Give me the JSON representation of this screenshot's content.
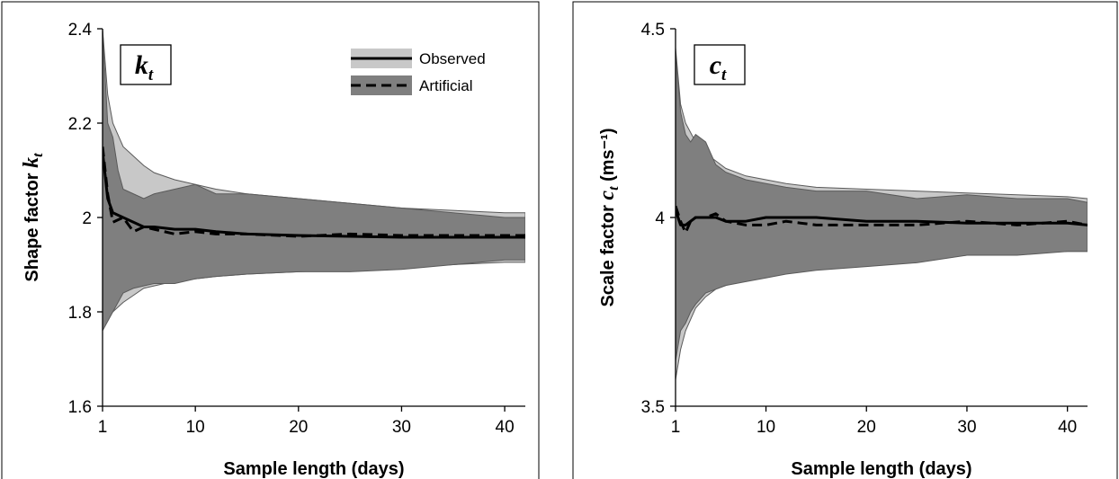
{
  "chart_data": [
    {
      "id": "left",
      "type": "area",
      "panel_label": {
        "symbol": "k",
        "sub": "t"
      },
      "xlabel": "Sample length (days)",
      "ylabel": {
        "text": "Shape factor ",
        "symbol": "k",
        "sub": "t",
        "suffix": ""
      },
      "xlim": [
        1,
        42
      ],
      "ylim": [
        1.6,
        2.4
      ],
      "xticks": [
        1,
        10,
        20,
        30,
        40
      ],
      "yticks": [
        1.6,
        1.8,
        2,
        2.2,
        2.4
      ],
      "ytick_labels": [
        "1.6",
        "1.8",
        "2",
        "2.2",
        "2.4"
      ],
      "legend": {
        "position": "top-right",
        "entries": [
          "Observed",
          "Artificial"
        ]
      },
      "series": [
        {
          "name": "Observed",
          "style": "solid",
          "x": [
            1,
            1.5,
            2,
            3,
            4,
            5,
            6,
            8,
            10,
            12,
            15,
            20,
            25,
            30,
            35,
            40,
            42
          ],
          "y": [
            2.14,
            2.04,
            2.01,
            2.0,
            1.99,
            1.98,
            1.98,
            1.975,
            1.975,
            1.97,
            1.965,
            1.962,
            1.96,
            1.958,
            1.958,
            1.958,
            1.958
          ],
          "band": {
            "upper": [
              2.4,
              2.26,
              2.2,
              2.15,
              2.13,
              2.11,
              2.095,
              2.08,
              2.07,
              2.06,
              2.05,
              2.04,
              2.03,
              2.02,
              2.015,
              2.01,
              2.01
            ],
            "lower": [
              1.77,
              1.79,
              1.8,
              1.82,
              1.835,
              1.85,
              1.855,
              1.865,
              1.87,
              1.875,
              1.88,
              1.885,
              1.89,
              1.895,
              1.9,
              1.905,
              1.905
            ]
          }
        },
        {
          "name": "Artificial",
          "style": "dashed",
          "x": [
            1,
            1.5,
            2,
            2.5,
            3,
            4,
            5,
            6,
            8,
            10,
            12,
            15,
            20,
            25,
            30,
            35,
            40,
            42
          ],
          "y": [
            2.15,
            2.05,
            1.99,
            1.995,
            2.0,
            1.97,
            1.98,
            1.975,
            1.965,
            1.97,
            1.965,
            1.965,
            1.96,
            1.965,
            1.962,
            1.962,
            1.962,
            1.962
          ],
          "band": {
            "upper": [
              2.4,
              2.2,
              2.17,
              2.1,
              2.06,
              2.05,
              2.04,
              2.05,
              2.06,
              2.07,
              2.05,
              2.05,
              2.04,
              2.03,
              2.02,
              2.01,
              2.0,
              2.0
            ],
            "lower": [
              1.76,
              1.78,
              1.8,
              1.82,
              1.84,
              1.85,
              1.855,
              1.86,
              1.86,
              1.87,
              1.875,
              1.88,
              1.885,
              1.885,
              1.89,
              1.9,
              1.91,
              1.91
            ]
          }
        }
      ]
    },
    {
      "id": "right",
      "type": "area",
      "panel_label": {
        "symbol": "c",
        "sub": "t"
      },
      "xlabel": "Sample length (days)",
      "ylabel": {
        "text": "Scale factor ",
        "symbol": "c",
        "sub": "t",
        "suffix": " (ms⁻¹)"
      },
      "xlim": [
        1,
        42
      ],
      "ylim": [
        3.5,
        4.5
      ],
      "xticks": [
        1,
        10,
        20,
        30,
        40
      ],
      "yticks": [
        3.5,
        4,
        4.5
      ],
      "ytick_labels": [
        "3.5",
        "4",
        "4.5"
      ],
      "series": [
        {
          "name": "Observed",
          "style": "solid",
          "x": [
            1,
            1.5,
            2,
            3,
            4,
            5,
            6,
            8,
            10,
            12,
            15,
            20,
            25,
            30,
            35,
            40,
            42
          ],
          "y": [
            4.02,
            3.98,
            3.98,
            4.0,
            4.0,
            4.0,
            3.99,
            3.99,
            4.0,
            4.0,
            4.0,
            3.99,
            3.99,
            3.985,
            3.985,
            3.985,
            3.98
          ],
          "band": {
            "upper": [
              4.45,
              4.3,
              4.25,
              4.2,
              4.17,
              4.15,
              4.13,
              4.11,
              4.1,
              4.09,
              4.08,
              4.075,
              4.07,
              4.065,
              4.06,
              4.055,
              4.05
            ],
            "lower": [
              3.57,
              3.65,
              3.7,
              3.76,
              3.79,
              3.81,
              3.82,
              3.84,
              3.85,
              3.86,
              3.87,
              3.88,
              3.89,
              3.9,
              3.905,
              3.91,
              3.91
            ]
          }
        },
        {
          "name": "Artificial",
          "style": "dashed",
          "x": [
            1,
            1.5,
            2,
            2.5,
            3,
            4,
            5,
            6,
            8,
            10,
            12,
            15,
            20,
            25,
            30,
            35,
            40,
            42
          ],
          "y": [
            4.03,
            3.99,
            3.96,
            3.99,
            4.0,
            4.0,
            4.01,
            3.99,
            3.98,
            3.98,
            3.99,
            3.98,
            3.98,
            3.98,
            3.99,
            3.98,
            3.99,
            3.98
          ],
          "band": {
            "upper": [
              4.44,
              4.28,
              4.22,
              4.2,
              4.22,
              4.2,
              4.14,
              4.12,
              4.1,
              4.09,
              4.08,
              4.07,
              4.07,
              4.05,
              4.06,
              4.05,
              4.05,
              4.04
            ],
            "lower": [
              3.62,
              3.7,
              3.72,
              3.75,
              3.77,
              3.8,
              3.81,
              3.82,
              3.83,
              3.84,
              3.85,
              3.86,
              3.87,
              3.88,
              3.9,
              3.9,
              3.91,
              3.91
            ]
          }
        }
      ]
    }
  ],
  "colors": {
    "observed_band": "#c8c8c8",
    "artificial_band": "#7f7f7f",
    "band_edge": "#5a5a5a",
    "line": "#000000",
    "frame": "#000000"
  }
}
